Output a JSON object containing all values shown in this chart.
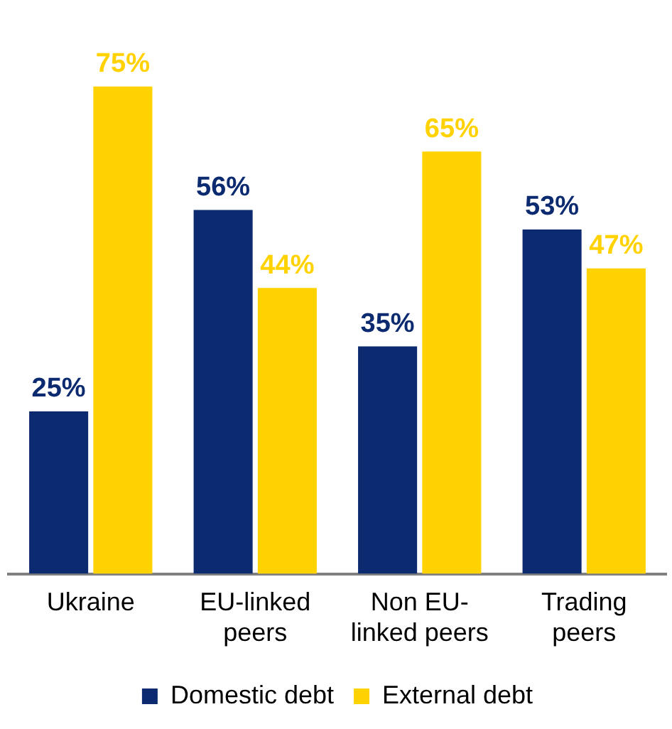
{
  "chart_data": {
    "type": "bar",
    "categories": [
      "Ukraine",
      "EU-linked peers",
      "Non EU-linked peers",
      "Trading peers"
    ],
    "series": [
      {
        "name": "Domestic debt",
        "color": "#0b2a6f",
        "values": [
          25,
          56,
          35,
          53
        ],
        "value_labels": [
          "25%",
          "56%",
          "35%",
          "53%"
        ]
      },
      {
        "name": "External debt",
        "color": "#ffd200",
        "values": [
          75,
          44,
          65,
          47
        ],
        "value_labels": [
          "75%",
          "44%",
          "65%",
          "47%"
        ]
      }
    ],
    "legend": "bottom"
  }
}
